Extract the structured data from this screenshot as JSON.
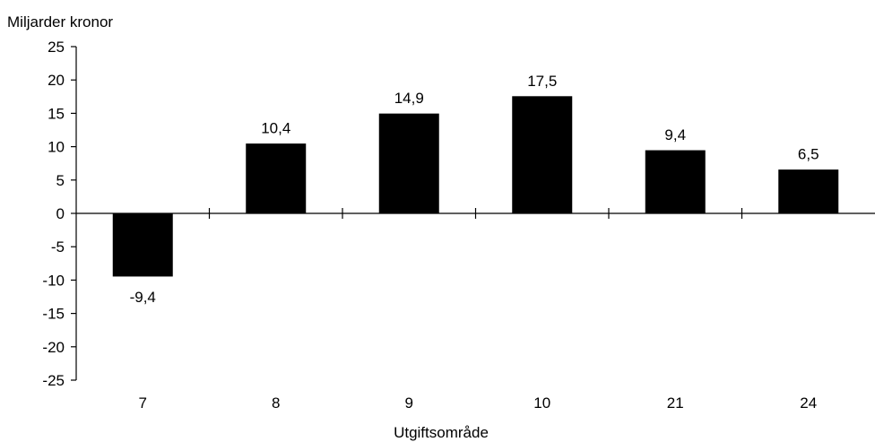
{
  "chart_data": {
    "type": "bar",
    "ylabel": "Miljarder kronor",
    "xlabel": "Utgiftsområde",
    "categories": [
      "7",
      "8",
      "9",
      "10",
      "21",
      "24"
    ],
    "values": [
      -9.4,
      10.4,
      14.9,
      17.5,
      9.4,
      6.5
    ],
    "data_labels": [
      "-9,4",
      "10,4",
      "14,9",
      "17,5",
      "9,4",
      "6,5"
    ],
    "yticks": [
      "25",
      "20",
      "15",
      "10",
      "5",
      "0",
      "-5",
      "-10",
      "-15",
      "-20",
      "-25"
    ],
    "ylim": [
      -25,
      25
    ],
    "grid": false,
    "legend": "none",
    "bar_color": "#000000"
  }
}
